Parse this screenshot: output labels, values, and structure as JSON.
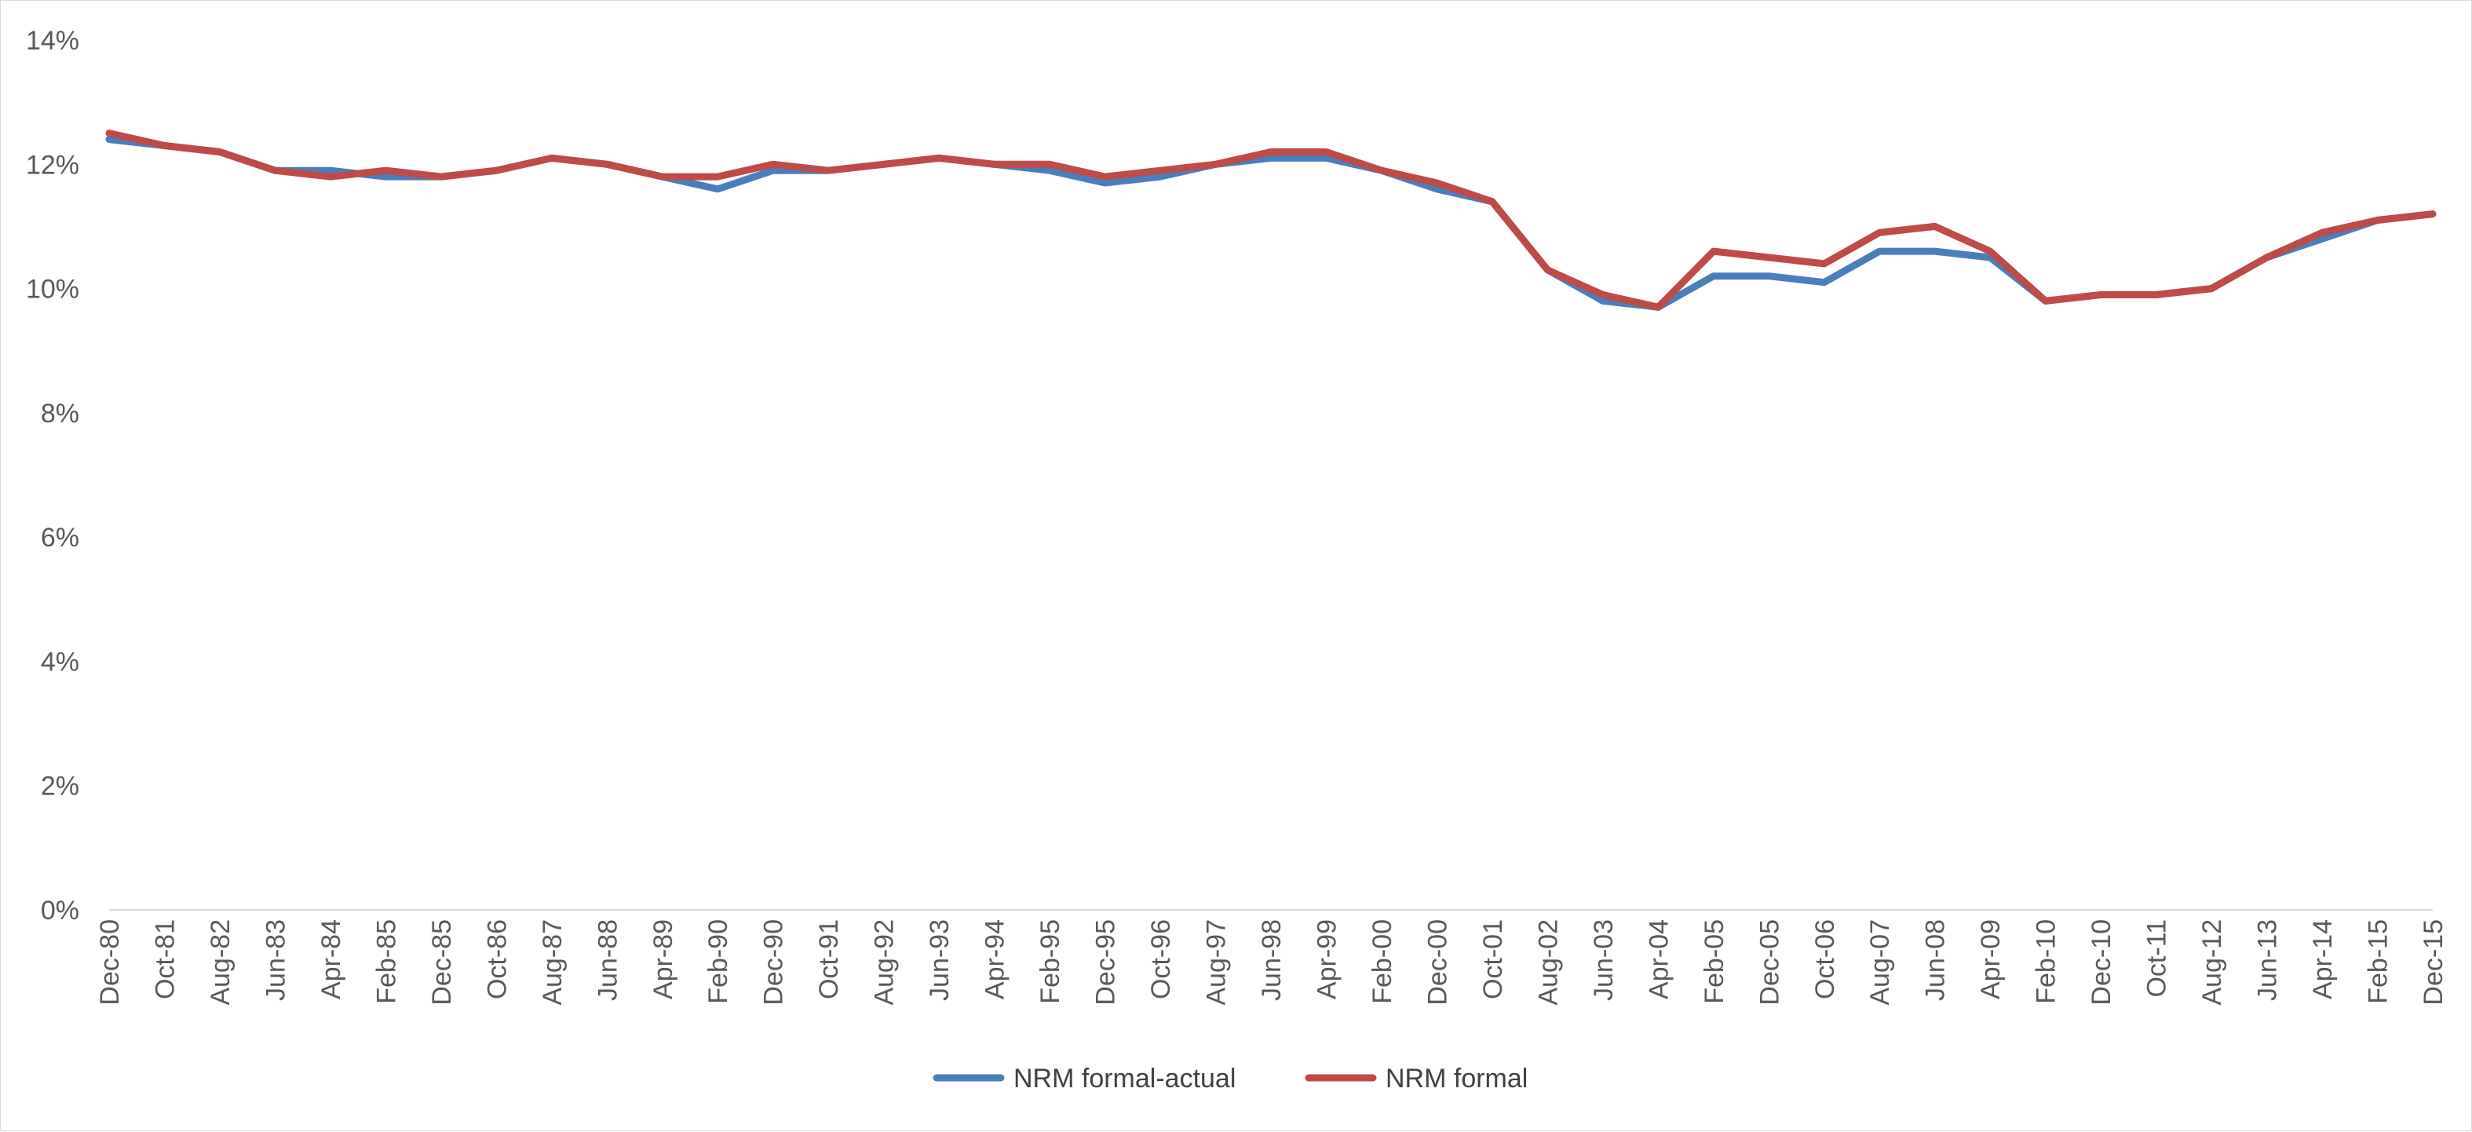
{
  "chart_data": {
    "type": "line",
    "title": "",
    "xlabel": "",
    "ylabel": "",
    "x_tick_labels": [
      "Dec-80",
      "Oct-81",
      "Aug-82",
      "Jun-83",
      "Apr-84",
      "Feb-85",
      "Dec-85",
      "Oct-86",
      "Aug-87",
      "Jun-88",
      "Apr-89",
      "Feb-90",
      "Dec-90",
      "Oct-91",
      "Aug-92",
      "Jun-93",
      "Apr-94",
      "Feb-95",
      "Dec-95",
      "Oct-96",
      "Aug-97",
      "Jun-98",
      "Apr-99",
      "Feb-00",
      "Dec-00",
      "Oct-01",
      "Aug-02",
      "Jun-03",
      "Apr-04",
      "Feb-05",
      "Dec-05",
      "Oct-06",
      "Aug-07",
      "Jun-08",
      "Apr-09",
      "Feb-10",
      "Dec-10",
      "Oct-11",
      "Aug-12",
      "Jun-13",
      "Apr-14",
      "Feb-15",
      "Dec-15"
    ],
    "y_tick_labels": [
      "0%",
      "2%",
      "4%",
      "6%",
      "8%",
      "10%",
      "12%",
      "14%"
    ],
    "ylim": [
      0,
      14
    ],
    "grid": false,
    "legend_position": "bottom",
    "x": [
      "Dec-80",
      "Oct-81",
      "Aug-82",
      "Jun-83",
      "Apr-84",
      "Feb-85",
      "Dec-85",
      "Oct-86",
      "Aug-87",
      "Jun-88",
      "Apr-89",
      "Feb-90",
      "Dec-90",
      "Oct-91",
      "Aug-92",
      "Jun-93",
      "Apr-94",
      "Feb-95",
      "Dec-95",
      "Oct-96",
      "Aug-97",
      "Jun-98",
      "Apr-99",
      "Feb-00",
      "Dec-00",
      "Oct-01",
      "Aug-02",
      "Jun-03",
      "Apr-04",
      "Feb-05",
      "Dec-05",
      "Oct-06",
      "Aug-07",
      "Jun-08",
      "Apr-09",
      "Feb-10",
      "Dec-10",
      "Oct-11",
      "Aug-12",
      "Jun-13",
      "Apr-14",
      "Feb-15",
      "Dec-15"
    ],
    "series": [
      {
        "name": "NRM formal-actual",
        "color": "#4a7ebb",
        "values": [
          12.4,
          12.3,
          12.2,
          11.9,
          11.9,
          11.8,
          11.8,
          11.9,
          12.1,
          12.0,
          11.8,
          11.6,
          11.9,
          11.9,
          12.0,
          12.1,
          12.0,
          11.9,
          11.7,
          11.8,
          12.0,
          12.1,
          12.1,
          11.9,
          11.6,
          11.4,
          10.3,
          9.8,
          9.7,
          10.2,
          10.2,
          10.1,
          10.6,
          10.6,
          10.5,
          9.8,
          9.9,
          9.9,
          10.0,
          10.5,
          10.8,
          11.1,
          11.2
        ]
      },
      {
        "name": "NRM formal",
        "color": "#be4b48",
        "values": [
          12.5,
          12.3,
          12.2,
          11.9,
          11.8,
          11.9,
          11.8,
          11.9,
          12.1,
          12.0,
          11.8,
          11.8,
          12.0,
          11.9,
          12.0,
          12.1,
          12.0,
          12.0,
          11.8,
          11.9,
          12.0,
          12.2,
          12.2,
          11.9,
          11.7,
          11.4,
          10.3,
          9.9,
          9.7,
          10.6,
          10.5,
          10.4,
          10.9,
          11.0,
          10.6,
          9.8,
          9.9,
          9.9,
          10.0,
          10.5,
          10.9,
          11.1,
          11.2
        ]
      }
    ]
  }
}
